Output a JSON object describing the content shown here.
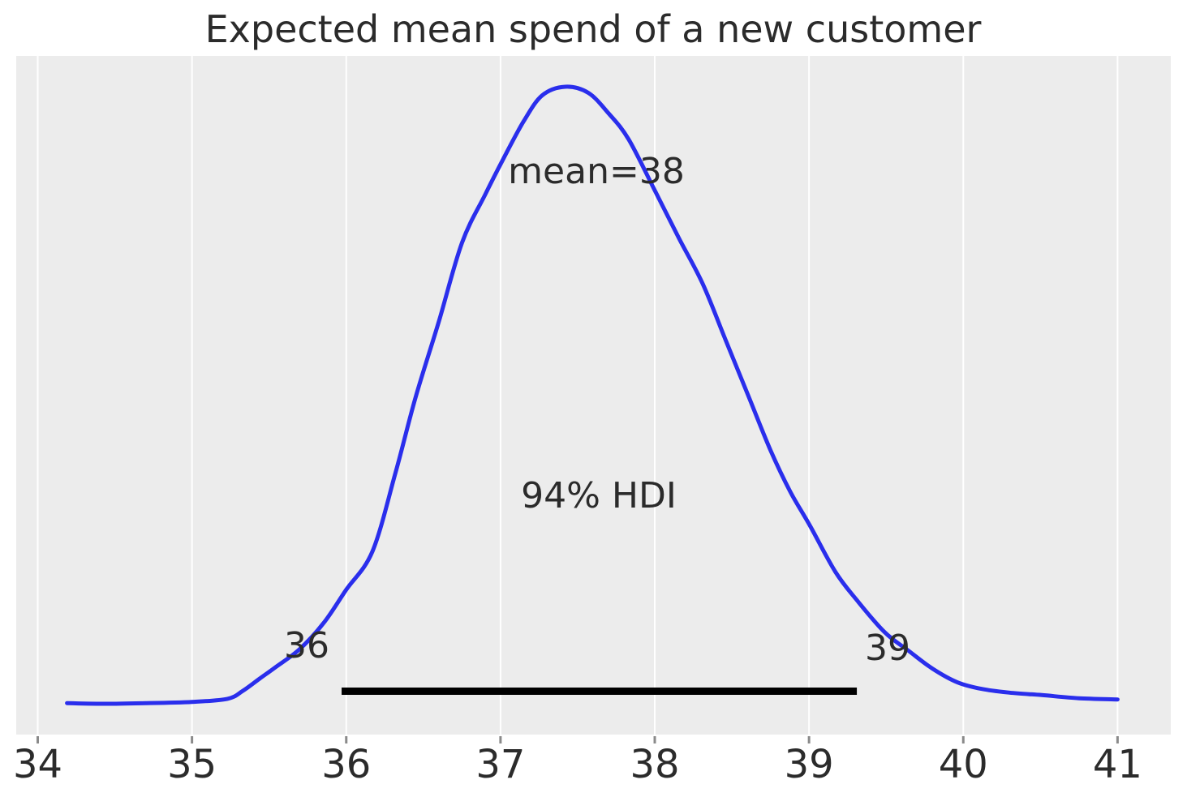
{
  "title": "Expected mean spend of a new customer",
  "annotations": {
    "mean_label": "mean=38",
    "hdi_label": "94% HDI",
    "hdi_lower_label": "36",
    "hdi_upper_label": "39"
  },
  "colors": {
    "curve": "#2a2eec",
    "panel_bg": "#ececec",
    "gridline": "#ffffff",
    "hdi_bar": "#000000",
    "tick_mark": "#8a8a8a",
    "text": "#2b2b2b",
    "page_bg": "#ffffff"
  },
  "chart_data": {
    "type": "line",
    "subtype": "posterior-kde",
    "title": "Expected mean spend of a new customer",
    "xlabel": "",
    "ylabel": "",
    "x_range": [
      34,
      41
    ],
    "x_ticks": [
      34,
      35,
      36,
      37,
      38,
      39,
      40,
      41
    ],
    "y_axis_shown": false,
    "grid": "vertical white gridlines on gray panel",
    "legend_position": "none",
    "series": [
      {
        "name": "posterior density",
        "x": [
          34.19,
          34.44,
          34.7,
          35.0,
          35.23,
          35.33,
          35.44,
          35.54,
          35.7,
          35.86,
          36.0,
          36.17,
          36.32,
          36.45,
          36.6,
          36.75,
          36.9,
          37.02,
          37.15,
          37.27,
          37.42,
          37.57,
          37.7,
          37.83,
          38.0,
          38.16,
          38.31,
          38.46,
          38.61,
          38.75,
          38.88,
          39.01,
          39.17,
          39.31,
          39.49,
          39.65,
          39.8,
          39.96,
          40.12,
          40.3,
          40.51,
          40.75,
          41.0
        ],
        "density": [
          0.001,
          0.0,
          0.001,
          0.003,
          0.008,
          0.021,
          0.041,
          0.059,
          0.089,
          0.133,
          0.185,
          0.247,
          0.375,
          0.497,
          0.619,
          0.747,
          0.825,
          0.884,
          0.944,
          0.986,
          1.0,
          0.99,
          0.957,
          0.915,
          0.832,
          0.753,
          0.681,
          0.589,
          0.497,
          0.411,
          0.343,
          0.287,
          0.214,
          0.168,
          0.116,
          0.085,
          0.057,
          0.035,
          0.024,
          0.018,
          0.014,
          0.009,
          0.007
        ]
      }
    ],
    "stats": {
      "mean": 38,
      "mode_x": 37.42,
      "hdi_probability": 0.94,
      "hdi_interval": [
        35.97,
        39.31
      ],
      "hdi_labels": [
        "36",
        "39"
      ]
    }
  }
}
